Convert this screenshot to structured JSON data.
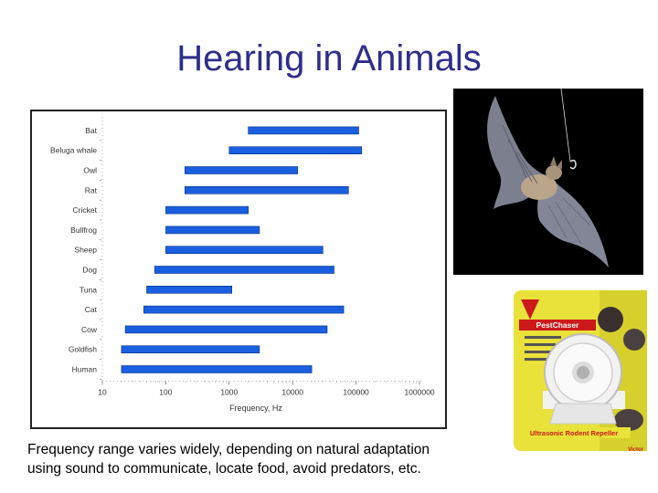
{
  "slide": {
    "title": "Hearing in Animals",
    "caption_line1": "Frequency range varies widely, depending on natural adaptation",
    "caption_line2": "using sound to communicate, locate food, avoid predators, etc."
  },
  "product": {
    "brand": "Victor",
    "name": "PestChaser",
    "label": "Ultrasonic Rodent Repeller"
  },
  "chart_data": {
    "type": "bar",
    "orientation": "horizontal",
    "range_bars": true,
    "xlabel": "Frequency, Hz",
    "xscale": "log",
    "xlim": [
      10,
      1000000
    ],
    "xticks": [
      10,
      100,
      1000,
      10000,
      100000,
      1000000
    ],
    "xtick_labels": [
      "10",
      "100",
      "1000",
      "10000",
      "100000",
      "1000000"
    ],
    "bar_color": "#1a5fe0",
    "grid": false,
    "categories": [
      "Bat",
      "Beluga whale",
      "Owl",
      "Rat",
      "Cricket",
      "Bullfrog",
      "Sheep",
      "Dog",
      "Tuna",
      "Cat",
      "Cow",
      "Goldfish",
      "Human"
    ],
    "ranges": [
      [
        2000,
        110000
      ],
      [
        1000,
        123000
      ],
      [
        200,
        12000
      ],
      [
        200,
        76000
      ],
      [
        100,
        2000
      ],
      [
        100,
        3000
      ],
      [
        100,
        30000
      ],
      [
        67,
        45000
      ],
      [
        50,
        1100
      ],
      [
        45,
        64000
      ],
      [
        23,
        35000
      ],
      [
        20,
        3000
      ],
      [
        20,
        20000
      ]
    ]
  }
}
